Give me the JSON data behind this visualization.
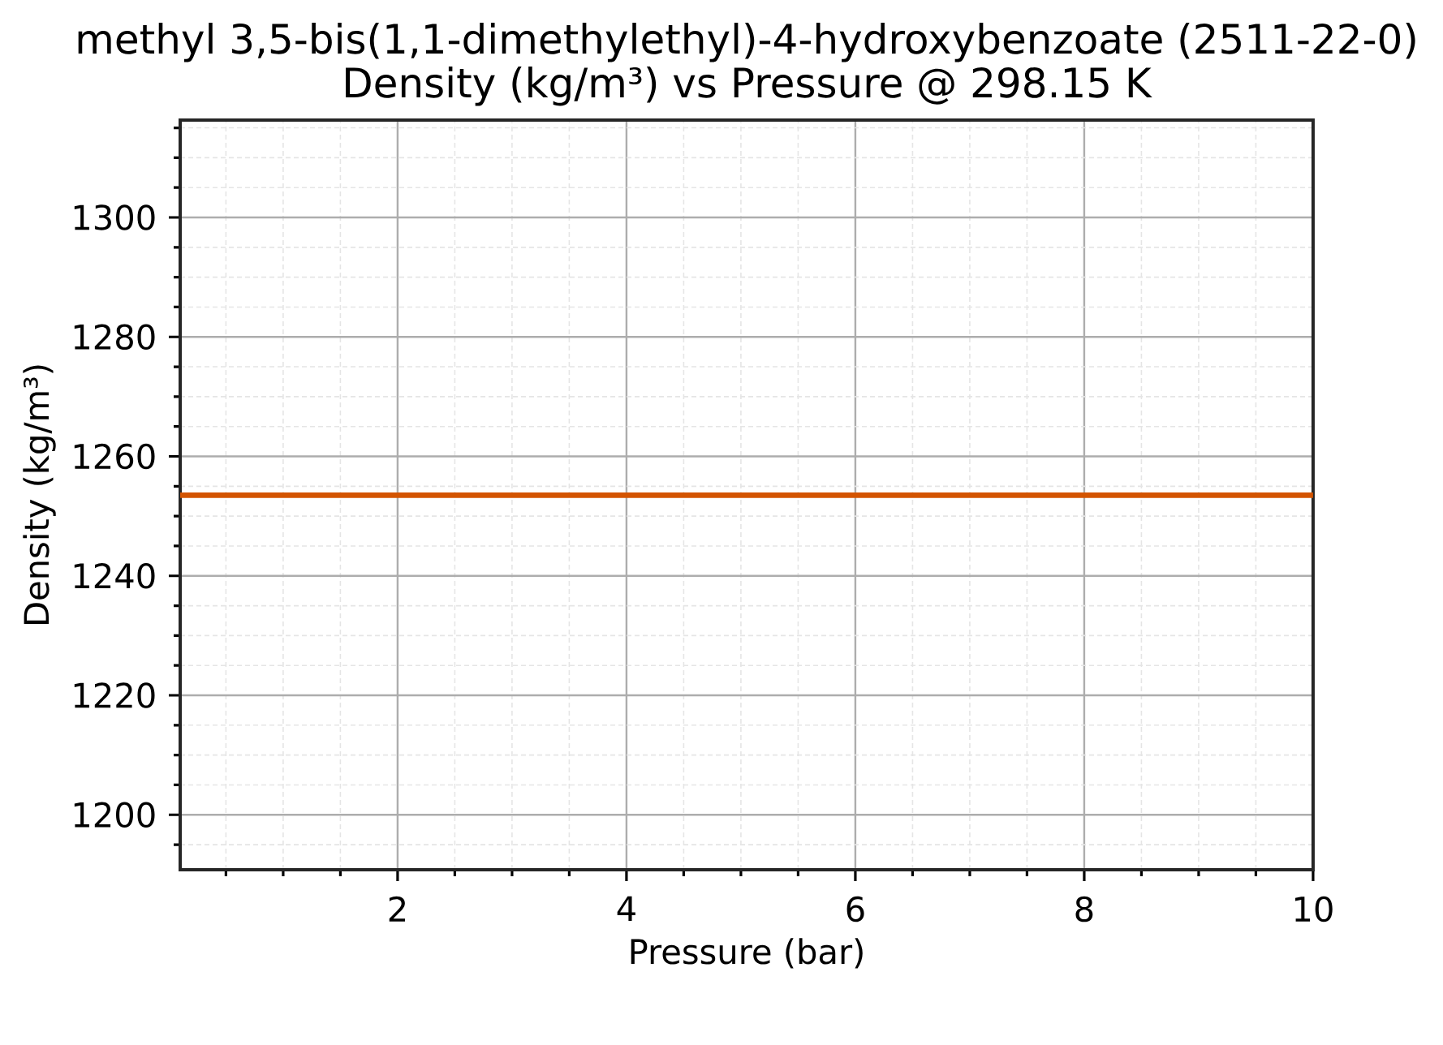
{
  "chart_data": {
    "type": "line",
    "title": "methyl 3,5-bis(1,1-dimethylethyl)-4-hydroxybenzoate (2511-22-0)",
    "subtitle": "Density (kg/m³) vs Pressure @ 298.15 K",
    "xlabel": "Pressure (bar)",
    "ylabel": "Density (kg/m³)",
    "x": [
      0.1,
      10
    ],
    "values": [
      1253.5,
      1253.5
    ],
    "color": "#d35400",
    "xlim": [
      0.1,
      10
    ],
    "ylim": [
      1190.8,
      1316.3
    ],
    "xticks": [
      2,
      4,
      6,
      8,
      10
    ],
    "yticks": [
      1200,
      1220,
      1240,
      1260,
      1280,
      1300
    ],
    "grid": true,
    "line_style": "solid"
  }
}
